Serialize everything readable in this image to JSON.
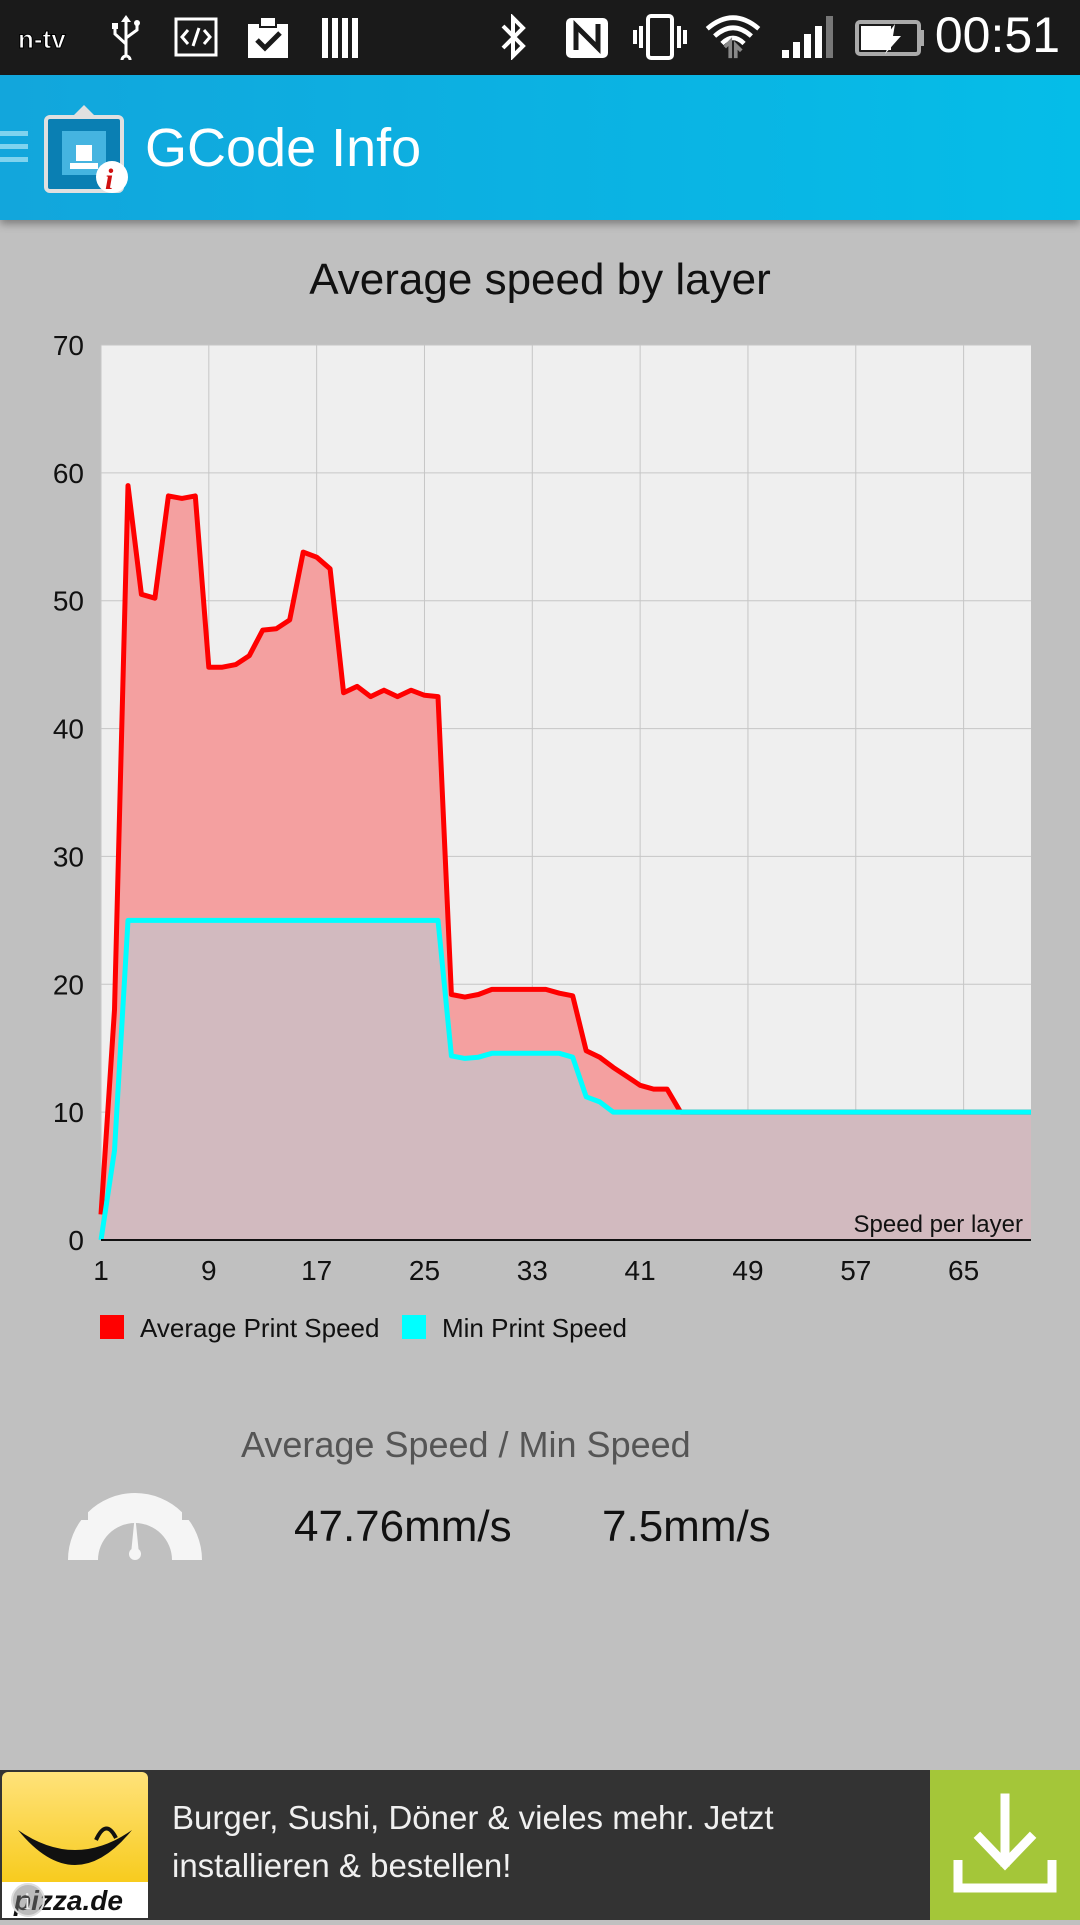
{
  "status_bar": {
    "time": "00:51",
    "icons_left": [
      "n-tv-icon",
      "usb-icon",
      "code-icon",
      "clipboard-check-icon",
      "barcode-icon"
    ],
    "icons_right": [
      "bluetooth-icon",
      "nfc-icon",
      "vibrate-icon",
      "wifi-icon",
      "signal-icon",
      "battery-charging-icon"
    ],
    "n_tv_text": "n-tv"
  },
  "app_bar": {
    "title": "GCode Info",
    "color": "#0fb0e2"
  },
  "chart_title": "Average speed by layer",
  "chart_data": {
    "type": "area",
    "title": "Average speed by layer",
    "annotation": "Speed per layer",
    "xlim": [
      1,
      70
    ],
    "ylim": [
      0,
      70
    ],
    "x_ticks": [
      "1",
      "9",
      "17",
      "25",
      "33",
      "41",
      "49",
      "57",
      "65"
    ],
    "y_ticks": [
      "0",
      "10",
      "20",
      "30",
      "40",
      "50",
      "60",
      "70"
    ],
    "grid": true,
    "legend_position": "bottom-left",
    "series": [
      {
        "name": "Average Print Speed",
        "color": "#ff0000",
        "fill": "#f4a0a0",
        "points": [
          [
            1,
            2
          ],
          [
            2,
            18
          ],
          [
            3,
            59
          ],
          [
            4,
            50.5
          ],
          [
            5,
            50.2
          ],
          [
            6,
            58.2
          ],
          [
            7,
            58
          ],
          [
            8,
            58.2
          ],
          [
            9,
            44.8
          ],
          [
            10,
            44.8
          ],
          [
            11,
            45
          ],
          [
            12,
            45.7
          ],
          [
            13,
            47.7
          ],
          [
            14,
            47.8
          ],
          [
            15,
            48.5
          ],
          [
            16,
            53.8
          ],
          [
            17,
            53.4
          ],
          [
            18,
            52.5
          ],
          [
            19,
            42.8
          ],
          [
            20,
            43.3
          ],
          [
            21,
            42.5
          ],
          [
            22,
            43
          ],
          [
            23,
            42.5
          ],
          [
            24,
            43
          ],
          [
            25,
            42.6
          ],
          [
            26,
            42.5
          ],
          [
            27,
            19.2
          ],
          [
            28,
            19
          ],
          [
            29,
            19.2
          ],
          [
            30,
            19.6
          ],
          [
            31,
            19.6
          ],
          [
            32,
            19.6
          ],
          [
            33,
            19.6
          ],
          [
            34,
            19.6
          ],
          [
            35,
            19.3
          ],
          [
            36,
            19.1
          ],
          [
            37,
            14.8
          ],
          [
            38,
            14.3
          ],
          [
            39,
            13.5
          ],
          [
            40,
            12.8
          ],
          [
            41,
            12.1
          ],
          [
            42,
            11.8
          ],
          [
            43,
            11.8
          ],
          [
            44,
            10
          ],
          [
            70,
            10
          ]
        ]
      },
      {
        "name": "Min Print Speed",
        "color": "#00ffff",
        "fill": "#d2babf",
        "points": [
          [
            1,
            0
          ],
          [
            2,
            7
          ],
          [
            3,
            25
          ],
          [
            4,
            25
          ],
          [
            26,
            25
          ],
          [
            27,
            14.4
          ],
          [
            28,
            14.2
          ],
          [
            29,
            14.3
          ],
          [
            30,
            14.6
          ],
          [
            35,
            14.6
          ],
          [
            36,
            14.3
          ],
          [
            37,
            11.2
          ],
          [
            38,
            10.8
          ],
          [
            39,
            10
          ],
          [
            70,
            10
          ]
        ]
      }
    ]
  },
  "stats": {
    "label": "Average Speed / Min Speed",
    "average_speed": "47.76mm/s",
    "min_speed": "7.5mm/s"
  },
  "ad": {
    "text": "Burger, Sushi, Döner & vieles mehr. Jetzt installieren & bestellen!",
    "logo_text": "pizza.de",
    "download_color": "#a4c639"
  }
}
